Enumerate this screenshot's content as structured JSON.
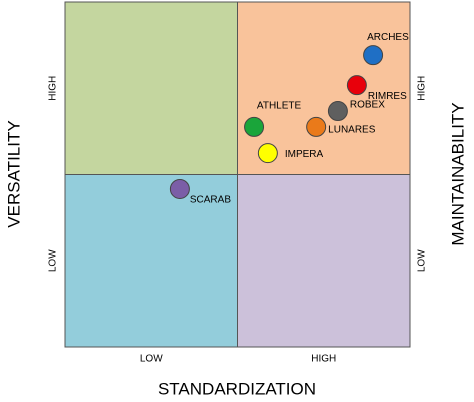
{
  "chart_data": {
    "type": "scatter",
    "x_label": "STANDARDIZATION",
    "y_label": "VERSATILITY",
    "y2_label": "MAINTAINABILITY",
    "xlim": [
      0,
      100
    ],
    "ylim": [
      0,
      100
    ],
    "y2lim": [
      0,
      100
    ],
    "xticks": [
      {
        "value": 25,
        "label": "LOW"
      },
      {
        "value": 75,
        "label": "HIGH"
      }
    ],
    "yticks": [
      {
        "value": 25,
        "label": "LOW"
      },
      {
        "value": 75,
        "label": "HIGH"
      }
    ],
    "y2ticks": [
      {
        "value": 25,
        "label": "LOW"
      },
      {
        "value": 75,
        "label": "HIGH"
      }
    ],
    "quadrant_split": [
      50,
      50
    ],
    "quadrant_colors": {
      "top_left": "#c4d69f",
      "top_right": "#f9c39b",
      "bottom_left": "#93cddb",
      "bottom_right": "#ccc1da"
    },
    "series": [
      {
        "name": "ARCHES",
        "color": "#1f6fc5",
        "x": [
          89.3
        ],
        "values": [
          84.6
        ]
      },
      {
        "name": "RIMRES",
        "color": "#e8000b",
        "x": [
          84.6
        ],
        "values": [
          75.9
        ]
      },
      {
        "name": "ROBEX",
        "color": "#5f5f5f",
        "x": [
          79.1
        ],
        "values": [
          68.4
        ]
      },
      {
        "name": "LUNARES",
        "color": "#ea7a1a",
        "x": [
          72.8
        ],
        "values": [
          63.8
        ]
      },
      {
        "name": "ATHLETE",
        "color": "#1aa53a",
        "x": [
          54.8
        ],
        "values": [
          63.8
        ]
      },
      {
        "name": "IMPERA",
        "color": "#ffff00",
        "x": [
          58.8
        ],
        "values": [
          56.2
        ]
      },
      {
        "name": "SCARAB",
        "color": "#7b5ea7",
        "x": [
          33.3
        ],
        "values": [
          45.8
        ]
      }
    ]
  }
}
